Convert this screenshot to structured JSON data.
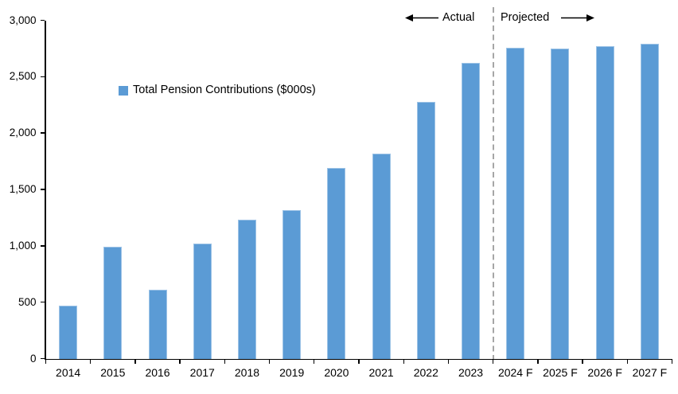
{
  "chart_data": {
    "type": "bar",
    "title": "",
    "xlabel": "",
    "ylabel": "",
    "categories": [
      "2014",
      "2015",
      "2016",
      "2017",
      "2018",
      "2019",
      "2020",
      "2021",
      "2022",
      "2023",
      "2024 F",
      "2025 F",
      "2026 F",
      "2027 F"
    ],
    "values": [
      470,
      990,
      610,
      1020,
      1230,
      1320,
      1690,
      1820,
      2280,
      2620,
      2760,
      2750,
      2770,
      2790
    ],
    "series_name": "Total Pension Contributions ($000s)",
    "ylim": [
      0,
      3000
    ],
    "ytick_step": 500,
    "ytick_labels": [
      "0",
      "500",
      "1,000",
      "1,500",
      "2,000",
      "2,500",
      "3,000"
    ],
    "grid": false,
    "legend_position": "inside-upper-left",
    "annotations": {
      "actual_label": "Actual",
      "projected_label": "Projected",
      "divider_after_category": "2023"
    }
  },
  "legend": {
    "label": "Total Pension Contributions ($000s)",
    "marker": "square-icon"
  },
  "colors": {
    "bar": "#5B9BD5",
    "bar_border": "#9DC3E6",
    "axis": "#000000",
    "divider": "#A6A6A6",
    "text": "#000000",
    "background": "#FFFFFF"
  }
}
